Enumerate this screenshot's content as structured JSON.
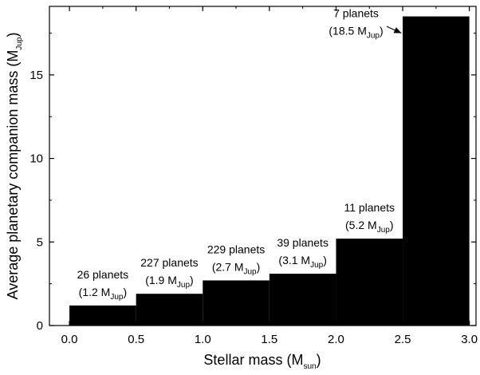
{
  "chart_data": {
    "type": "bar",
    "xlabel": "Stellar mass (M",
    "xlabel_sub": "sun",
    "xlabel_end": ")",
    "ylabel": "Average planetary companion mass (M",
    "ylabel_sub": "Jup",
    "ylabel_end": ")",
    "xlim": [
      -0.15,
      3.05
    ],
    "ylim": [
      0,
      19.1
    ],
    "xticks": [
      "0.0",
      "0.5",
      "1.0",
      "1.5",
      "2.0",
      "2.5",
      "3.0"
    ],
    "yticks": [
      "0",
      "5",
      "10",
      "15"
    ],
    "bar_color": "#000000",
    "bins": [
      {
        "x0": 0.0,
        "x1": 0.5,
        "value": 1.2,
        "count_label": "26 planets",
        "mass_label": "(1.2 M",
        "mass_sub": "Jup",
        "mass_end": ")"
      },
      {
        "x0": 0.5,
        "x1": 1.0,
        "value": 1.9,
        "count_label": "227 planets",
        "mass_label": "(1.9 M",
        "mass_sub": "Jup",
        "mass_end": ")"
      },
      {
        "x0": 1.0,
        "x1": 1.5,
        "value": 2.7,
        "count_label": "229 planets",
        "mass_label": "(2.7 M",
        "mass_sub": "Jup",
        "mass_end": ")"
      },
      {
        "x0": 1.5,
        "x1": 2.0,
        "value": 3.1,
        "count_label": "39 planets",
        "mass_label": "(3.1 M",
        "mass_sub": "Jup",
        "mass_end": ")"
      },
      {
        "x0": 2.0,
        "x1": 2.5,
        "value": 5.2,
        "count_label": "11 planets",
        "mass_label": "(5.2 M",
        "mass_sub": "Jup",
        "mass_end": ")"
      },
      {
        "x0": 2.5,
        "x1": 3.0,
        "value": 18.5,
        "count_label": "7 planets",
        "mass_label": "(18.5 M",
        "mass_sub": "Jup",
        "mass_end": ")"
      }
    ]
  }
}
